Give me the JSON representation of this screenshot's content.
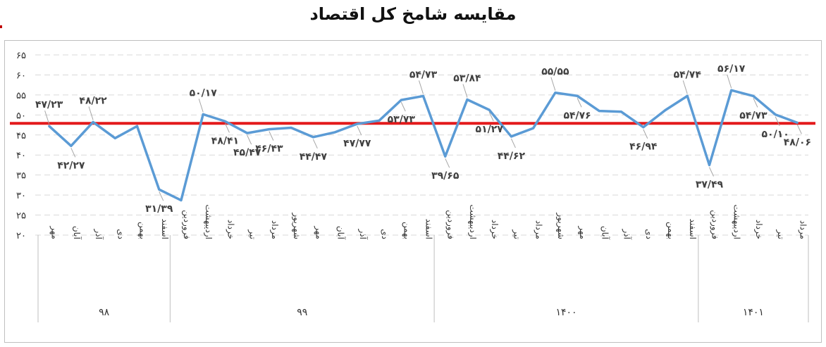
{
  "title": "مقایسه شامخ کل اقتصاد",
  "chart_data": {
    "type": "line",
    "title": "مقایسه شامخ کل اقتصاد",
    "ylim": [
      20,
      65
    ],
    "y_ticks": [
      "۲۰",
      "۲۵",
      "۳۰",
      "۳۵",
      "۴۰",
      "۴۵",
      "۵۰",
      "۵۵",
      "۶۰",
      "۶۵"
    ],
    "categories": [
      "مهر",
      "آبان",
      "آذر",
      "دی",
      "بهمن",
      "اسفند",
      "فروردین",
      "اردیبهشت",
      "خرداد",
      "تیر",
      "مرداد",
      "شهریور",
      "مهر",
      "آبان",
      "آذر",
      "دی",
      "بهمن",
      "اسفند",
      "فروردین",
      "اردیبهشت",
      "خرداد",
      "تیر",
      "مرداد",
      "شهریور",
      "مهر",
      "آبان",
      "آذر",
      "دی",
      "بهمن",
      "اسفند",
      "فروردین",
      "اردیبهشت",
      "خرداد",
      "تیر",
      "مرداد"
    ],
    "groups": [
      {
        "label": "۹۸",
        "start": 0,
        "end": 5
      },
      {
        "label": "۹۹",
        "start": 6,
        "end": 17
      },
      {
        "label": "۱۴۰۰",
        "start": 18,
        "end": 29
      },
      {
        "label": "۱۴۰۱",
        "start": 30,
        "end": 34
      }
    ],
    "series": [
      {
        "color": "#5b9bd5",
        "values": [
          47.23,
          42.27,
          48.22,
          44.2,
          47.2,
          31.39,
          28.7,
          50.17,
          48.41,
          45.47,
          46.43,
          46.8,
          44.47,
          45.7,
          47.77,
          48.6,
          53.73,
          54.73,
          39.65,
          53.84,
          51.27,
          44.62,
          46.7,
          55.55,
          54.76,
          51.0,
          50.8,
          46.94,
          51.2,
          54.74,
          37.49,
          56.17,
          54.73,
          50.1,
          48.06
        ]
      }
    ],
    "reference_line": {
      "value": 47.9,
      "color": "#e31a1c"
    },
    "data_labels": [
      {
        "index": 0,
        "text": "۴۷/۲۳"
      },
      {
        "index": 1,
        "text": "۴۲/۲۷"
      },
      {
        "index": 2,
        "text": "۴۸/۲۲"
      },
      {
        "index": 5,
        "text": "۳۱/۳۹"
      },
      {
        "index": 7,
        "text": "۵۰/۱۷"
      },
      {
        "index": 8,
        "text": "۴۸/۴۱"
      },
      {
        "index": 9,
        "text": "۴۵/۴۷"
      },
      {
        "index": 10,
        "text": "۴۶/۴۳"
      },
      {
        "index": 12,
        "text": "۴۴/۴۷"
      },
      {
        "index": 14,
        "text": "۴۷/۷۷"
      },
      {
        "index": 16,
        "text": "۵۳/۷۳"
      },
      {
        "index": 17,
        "text": "۵۴/۷۳"
      },
      {
        "index": 18,
        "text": "۳۹/۶۵"
      },
      {
        "index": 19,
        "text": "۵۳/۸۴"
      },
      {
        "index": 20,
        "text": "۵۱/۲۷"
      },
      {
        "index": 21,
        "text": "۴۴/۶۲"
      },
      {
        "index": 23,
        "text": "۵۵/۵۵"
      },
      {
        "index": 24,
        "text": "۵۴/۷۶"
      },
      {
        "index": 27,
        "text": "۴۶/۹۴"
      },
      {
        "index": 29,
        "text": "۵۴/۷۴"
      },
      {
        "index": 30,
        "text": "۳۷/۴۹"
      },
      {
        "index": 31,
        "text": "۵۶/۱۷"
      },
      {
        "index": 32,
        "text": "۵۴/۷۳"
      },
      {
        "index": 33,
        "text": "۵۰/۱۰"
      },
      {
        "index": 34,
        "text": "۴۸/۰۶"
      }
    ]
  }
}
